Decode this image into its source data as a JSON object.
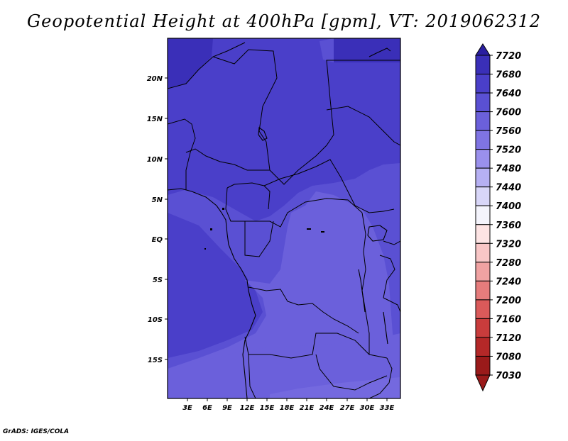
{
  "title": "Geopotential Height at 400hPa [gpm], VT: 2019062312",
  "footer": "GrADS: IGES/COLA",
  "map": {
    "lat_labels": [
      "20N",
      "15N",
      "10N",
      "5N",
      "EQ",
      "5S",
      "10S",
      "15S"
    ],
    "lon_labels": [
      "3E",
      "6E",
      "9E",
      "12E",
      "15E",
      "18E",
      "21E",
      "24E",
      "27E",
      "30E",
      "33E"
    ],
    "colors": {
      "c7680": "#3a2fb8",
      "c7640": "#4a3fc9",
      "c7600": "#5a50d3",
      "c7560": "#6b60db",
      "border": "#000000"
    }
  },
  "colorbar": {
    "labels": [
      "7720",
      "7680",
      "7640",
      "7600",
      "7560",
      "7520",
      "7480",
      "7440",
      "7400",
      "7360",
      "7320",
      "7280",
      "7240",
      "7200",
      "7160",
      "7120",
      "7080",
      "7030"
    ],
    "colors": [
      "#2a1ea0",
      "#3a2fb8",
      "#4a3fc9",
      "#5a50d3",
      "#6b60db",
      "#7f74e3",
      "#9a90ec",
      "#b6b0f3",
      "#d8d6f8",
      "#f4f4fc",
      "#fde4e4",
      "#f8c6c6",
      "#f0a2a2",
      "#e67c7c",
      "#da5a5a",
      "#c93c3c",
      "#b42828",
      "#9a1a1a"
    ]
  }
}
